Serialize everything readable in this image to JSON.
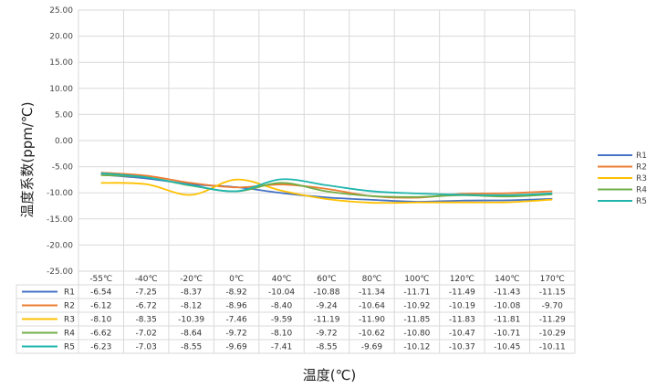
{
  "chart_data": {
    "type": "line",
    "title": "",
    "xlabel": "温度(℃)",
    "ylabel": "温度系数(ppm/℃)",
    "categories": [
      "-55℃",
      "-40℃",
      "-20℃",
      "0℃",
      "40℃",
      "60℃",
      "80℃",
      "100℃",
      "120℃",
      "140℃",
      "170℃"
    ],
    "ylim": [
      -25,
      25
    ],
    "ytick_step": 5,
    "ytick_labels": [
      "25.00",
      "20.00",
      "15.00",
      "10.00",
      "5.00",
      "0.00",
      "-5.00",
      "-10.00",
      "-15.00",
      "-20.00",
      "-25.00"
    ],
    "grid": true,
    "legend_position": "right",
    "data_table": true,
    "series": [
      {
        "name": "R1",
        "color": "#4472C4",
        "values": [
          -6.54,
          -7.25,
          -8.37,
          -8.92,
          -10.04,
          -10.88,
          -11.34,
          -11.71,
          -11.49,
          -11.43,
          -11.15
        ],
        "labels": [
          "-6.54",
          "-7.25",
          "-8.37",
          "-8.92",
          "-10.04",
          "-10.88",
          "-11.34",
          "-11.71",
          "-11.49",
          "-11.43",
          "-11.15"
        ]
      },
      {
        "name": "R2",
        "color": "#ED7D31",
        "values": [
          -6.12,
          -6.72,
          -8.12,
          -8.96,
          -8.4,
          -9.24,
          -10.64,
          -10.92,
          -10.19,
          -10.08,
          -9.7
        ],
        "labels": [
          "-6.12",
          "-6.72",
          "-8.12",
          "-8.96",
          "-8.40",
          "-9.24",
          "-10.64",
          "-10.92",
          "-10.19",
          "-10.08",
          "-9.70"
        ]
      },
      {
        "name": "R3",
        "color": "#FFC000",
        "values": [
          -8.1,
          -8.35,
          -10.39,
          -7.46,
          -9.59,
          -11.19,
          -11.9,
          -11.85,
          -11.83,
          -11.81,
          -11.29
        ],
        "labels": [
          "-8.10",
          "-8.35",
          "-10.39",
          "-7.46",
          "-9.59",
          "-11.19",
          "-11.90",
          "-11.85",
          "-11.83",
          "-11.81",
          "-11.29"
        ]
      },
      {
        "name": "R4",
        "color": "#70AD47",
        "values": [
          -6.62,
          -7.02,
          -8.64,
          -9.72,
          -8.1,
          -9.72,
          -10.62,
          -10.8,
          -10.47,
          -10.71,
          -10.29
        ],
        "labels": [
          "-6.62",
          "-7.02",
          "-8.64",
          "-9.72",
          "-8.10",
          "-9.72",
          "-10.62",
          "-10.80",
          "-10.47",
          "-10.71",
          "-10.29"
        ]
      },
      {
        "name": "R5",
        "color": "#1FB5AD",
        "values": [
          -6.23,
          -7.03,
          -8.55,
          -9.69,
          -7.41,
          -8.55,
          -9.69,
          -10.12,
          -10.37,
          -10.45,
          -10.11
        ],
        "labels": [
          "-6.23",
          "-7.03",
          "-8.55",
          "-9.69",
          "-7.41",
          "-8.55",
          "-9.69",
          "-10.12",
          "-10.37",
          "-10.45",
          "-10.11"
        ]
      }
    ]
  }
}
